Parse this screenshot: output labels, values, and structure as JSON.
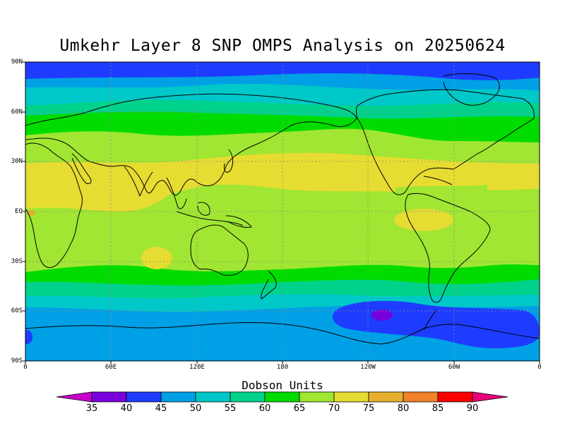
{
  "title": "Umkehr Layer 8 SNP OMPS Analysis on 20250624",
  "lat_labels": [
    "90N",
    "60N",
    "30N",
    "EQ",
    "30S",
    "60S",
    "90S"
  ],
  "lon_labels": [
    "0",
    "60E",
    "120E",
    "180",
    "120W",
    "60W",
    "0"
  ],
  "colorbar": {
    "title": "Dobson Units",
    "labels": [
      "35",
      "40",
      "45",
      "50",
      "55",
      "60",
      "65",
      "70",
      "75",
      "80",
      "85",
      "90"
    ],
    "colors": [
      "#c800c8",
      "#7800dc",
      "#1e3cff",
      "#00a0e6",
      "#00c8c8",
      "#00d28c",
      "#00dc00",
      "#a0e632",
      "#e6dc32",
      "#e6af2d",
      "#f08228",
      "#fa0000",
      "#e6007a"
    ]
  },
  "zonal_bands": [
    {
      "lat_from": 90,
      "lat_to": 78,
      "du": "40-45"
    },
    {
      "lat_from": 78,
      "lat_to": 70,
      "du": "45-50"
    },
    {
      "lat_from": 70,
      "lat_to": 58,
      "du": "50-55"
    },
    {
      "lat_from": 58,
      "lat_to": 50,
      "du": "55-60"
    },
    {
      "lat_from": 50,
      "lat_to": 40,
      "du": "60-65"
    },
    {
      "lat_from": 40,
      "lat_to": 28,
      "du": "65-70"
    },
    {
      "lat_from": 28,
      "lat_to": -20,
      "du": "70-75"
    },
    {
      "lat_from": -20,
      "lat_to": -38,
      "du": "65-70"
    },
    {
      "lat_from": -38,
      "lat_to": -48,
      "du": "60-65"
    },
    {
      "lat_from": -48,
      "lat_to": -54,
      "du": "55-60"
    },
    {
      "lat_from": -54,
      "lat_to": -62,
      "du": "50-55"
    },
    {
      "lat_from": -62,
      "lat_to": -70,
      "du": "45-50"
    },
    {
      "lat_from": -70,
      "lat_to": -90,
      "du": "45-50"
    }
  ],
  "features": {
    "low_center_du": "35-40",
    "low_center_region": "south pacific near 60S 110W"
  }
}
